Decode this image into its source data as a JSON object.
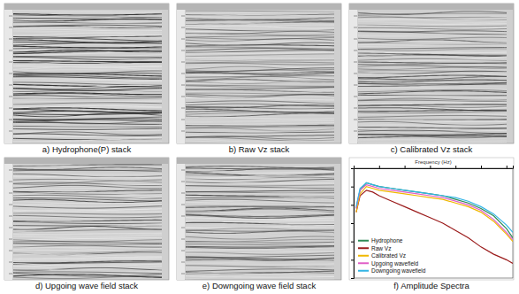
{
  "panels": [
    {
      "caption": "a) Hydrophone(P) stack"
    },
    {
      "caption": "b) Raw Vz stack"
    },
    {
      "caption": "c) Calibrated Vz stack"
    },
    {
      "caption": "d) Upgoing wave field stack"
    },
    {
      "caption": "e) Downgoing wave field stack"
    }
  ],
  "chart_data": {
    "type": "line",
    "title": "f) Amplitude Spectra",
    "x_label": "Frequency (Hz)",
    "x": [
      2,
      5,
      10,
      15,
      20,
      30,
      40,
      50,
      60,
      70,
      80,
      90,
      100,
      110,
      120,
      125
    ],
    "series": [
      {
        "name": "Hydrophone",
        "color": "#2e8b57",
        "values": [
          -22,
          -12,
          -8,
          -9,
          -10,
          -11,
          -12,
          -13,
          -14,
          -15,
          -17,
          -19,
          -22,
          -26,
          -33,
          -38
        ]
      },
      {
        "name": "Raw Vz",
        "color": "#9b1c1c",
        "values": [
          -24,
          -15,
          -12,
          -13,
          -15,
          -18,
          -21,
          -24,
          -27,
          -30,
          -34,
          -38,
          -43,
          -47,
          -50,
          -52
        ]
      },
      {
        "name": "Calibrated Vz",
        "color": "#f0b800",
        "values": [
          -24,
          -14,
          -10,
          -11,
          -12,
          -13,
          -14,
          -15,
          -16,
          -17,
          -19,
          -21,
          -24,
          -29,
          -36,
          -40
        ]
      },
      {
        "name": "Upgoing wavefield",
        "color": "#e060c8",
        "values": [
          -22,
          -12,
          -9,
          -10,
          -11,
          -12,
          -13,
          -14,
          -15,
          -16,
          -18,
          -20,
          -23,
          -28,
          -35,
          -39
        ]
      },
      {
        "name": "Downgoing wavefield",
        "color": "#33b5e5",
        "values": [
          -21,
          -11,
          -8,
          -9,
          -10,
          -11,
          -12,
          -13,
          -14,
          -15,
          -16,
          -18,
          -21,
          -25,
          -31,
          -35
        ]
      }
    ],
    "xlim": [
      0,
      125
    ],
    "xticks": [
      0,
      20,
      40,
      60,
      80,
      100,
      120
    ],
    "ylim": [
      -60,
      0
    ],
    "yticks": [
      -60,
      -50,
      -40,
      -30,
      -20,
      -10,
      0
    ],
    "tick_labels": false,
    "grid": false,
    "legend": "lower left"
  }
}
